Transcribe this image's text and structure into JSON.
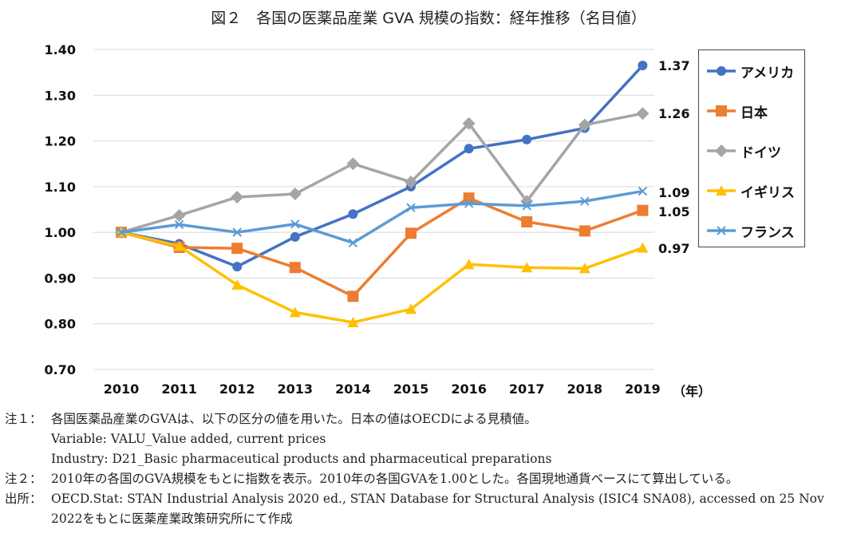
{
  "title": "図２　各国の医薬品産業 GVA 規模の指数：経年推移（名目値）",
  "chart_data": {
    "type": "line",
    "title": "図２　各国の医薬品産業 GVA 規模の指数：経年推移（名目値）",
    "xlabel": "（年）",
    "ylabel": "",
    "ylim": [
      0.7,
      1.4
    ],
    "yticks": [
      "0.70",
      "0.80",
      "0.90",
      "1.00",
      "1.10",
      "1.20",
      "1.30",
      "1.40"
    ],
    "categories": [
      "2010",
      "2011",
      "2012",
      "2013",
      "2014",
      "2015",
      "2016",
      "2017",
      "2018",
      "2019"
    ],
    "grid": true,
    "legend": "right",
    "series": [
      {
        "name": "アメリカ",
        "color": "#4472C4",
        "marker": "circle",
        "values": [
          1.0,
          0.975,
          0.925,
          0.99,
          1.04,
          1.1,
          1.183,
          1.203,
          1.228,
          1.365
        ],
        "end_label": "1.37"
      },
      {
        "name": "日本",
        "color": "#ED7D31",
        "marker": "square",
        "values": [
          1.0,
          0.967,
          0.965,
          0.923,
          0.86,
          0.998,
          1.075,
          1.023,
          1.003,
          1.048
        ],
        "end_label": "1.05"
      },
      {
        "name": "ドイツ",
        "color": "#A5A5A5",
        "marker": "diamond",
        "values": [
          1.0,
          1.037,
          1.077,
          1.084,
          1.15,
          1.11,
          1.238,
          1.068,
          1.235,
          1.26
        ],
        "end_label": "1.26"
      },
      {
        "name": "イギリス",
        "color": "#FFC000",
        "marker": "triangle",
        "values": [
          1.0,
          0.97,
          0.885,
          0.825,
          0.803,
          0.832,
          0.93,
          0.923,
          0.921,
          0.966
        ],
        "end_label": "0.97"
      },
      {
        "name": "フランス",
        "color": "#5B9BD5",
        "marker": "x",
        "values": [
          1.0,
          1.017,
          1.0,
          1.018,
          0.977,
          1.054,
          1.063,
          1.058,
          1.068,
          1.09
        ],
        "end_label": "1.09"
      }
    ]
  },
  "notes": [
    {
      "label": "注１：",
      "lines": [
        "各国医薬品産業のGVAは、以下の区分の値を用いた。日本の値はOECDによる見積値。",
        "Variable: VALU_Value added, current prices",
        "Industry: D21_Basic pharmaceutical products and pharmaceutical preparations"
      ]
    },
    {
      "label": "注２：",
      "lines": [
        "2010年の各国のGVA規模をもとに指数を表示。2010年の各国GVAを1.00とした。各国現地通貨ベースにて算出している。"
      ]
    },
    {
      "label": "出所：",
      "lines": [
        "OECD.Stat: STAN Industrial Analysis 2020 ed., STAN Database for Structural Analysis (ISIC4 SNA08), accessed on 25 Nov 2022をもとに医薬産業政策研究所にて作成"
      ]
    }
  ]
}
